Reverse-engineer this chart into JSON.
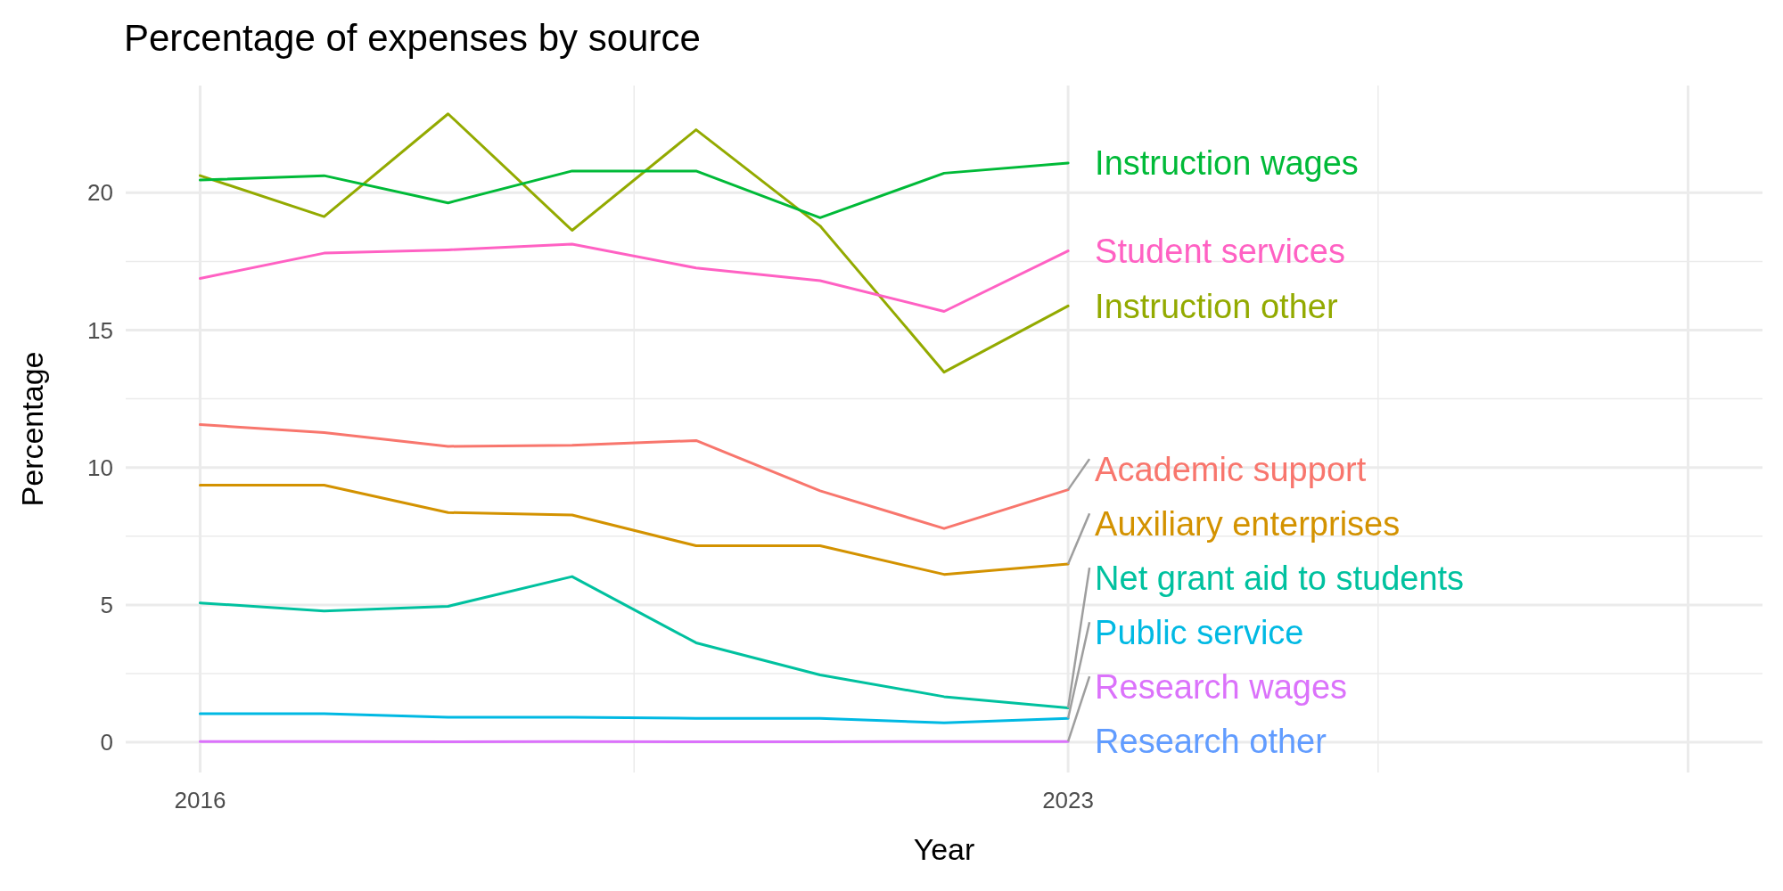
{
  "chart_data": {
    "type": "line",
    "title": "Percentage of expenses by source",
    "xlabel": "Year",
    "ylabel": "Percentage",
    "x": [
      2016,
      2017,
      2018,
      2019,
      2020,
      2021,
      2022,
      2023
    ],
    "xlim": [
      2015.4,
      2028.6
    ],
    "xticks": [
      2016,
      2023,
      {
        "value": 2028,
        "label": null
      }
    ],
    "ylim": [
      -1.1,
      23.9
    ],
    "yticks": [
      0,
      5,
      10,
      15,
      20
    ],
    "grid": true,
    "legend": false,
    "series": [
      {
        "name": "Academic support",
        "color": "#f8766d",
        "values": [
          11.56,
          11.27,
          10.77,
          10.81,
          10.98,
          9.15,
          7.78,
          9.19
        ]
      },
      {
        "name": "Auxiliary enterprises",
        "color": "#d39200",
        "values": [
          9.36,
          9.36,
          8.36,
          8.27,
          7.15,
          7.15,
          6.11,
          6.49
        ]
      },
      {
        "name": "Instruction other",
        "color": "#93aa00",
        "values": [
          20.62,
          19.13,
          22.87,
          18.63,
          22.29,
          18.79,
          13.47,
          15.88
        ]
      },
      {
        "name": "Instruction wages",
        "color": "#00ba38",
        "values": [
          20.46,
          20.62,
          19.63,
          20.79,
          20.79,
          19.09,
          20.71,
          21.08
        ]
      },
      {
        "name": "Net grant aid to students",
        "color": "#00c19f",
        "values": [
          5.07,
          4.78,
          4.95,
          6.03,
          3.62,
          2.45,
          1.66,
          1.25
        ]
      },
      {
        "name": "Public service",
        "color": "#00b9e3",
        "values": [
          1.04,
          1.04,
          0.91,
          0.91,
          0.87,
          0.87,
          0.71,
          0.87
        ]
      },
      {
        "name": "Research other",
        "color": "#619cff",
        "values": [
          null,
          null,
          null,
          null,
          null,
          null,
          null,
          null
        ]
      },
      {
        "name": "Research wages",
        "color": "#db72fb",
        "values": [
          0.03,
          0.03,
          0.02,
          0.03,
          0.02,
          0.02,
          0.03,
          0.03
        ]
      },
      {
        "name": "Student services",
        "color": "#ff61c3",
        "values": [
          16.88,
          17.8,
          17.92,
          18.13,
          17.26,
          16.8,
          15.68,
          17.88
        ]
      }
    ]
  }
}
